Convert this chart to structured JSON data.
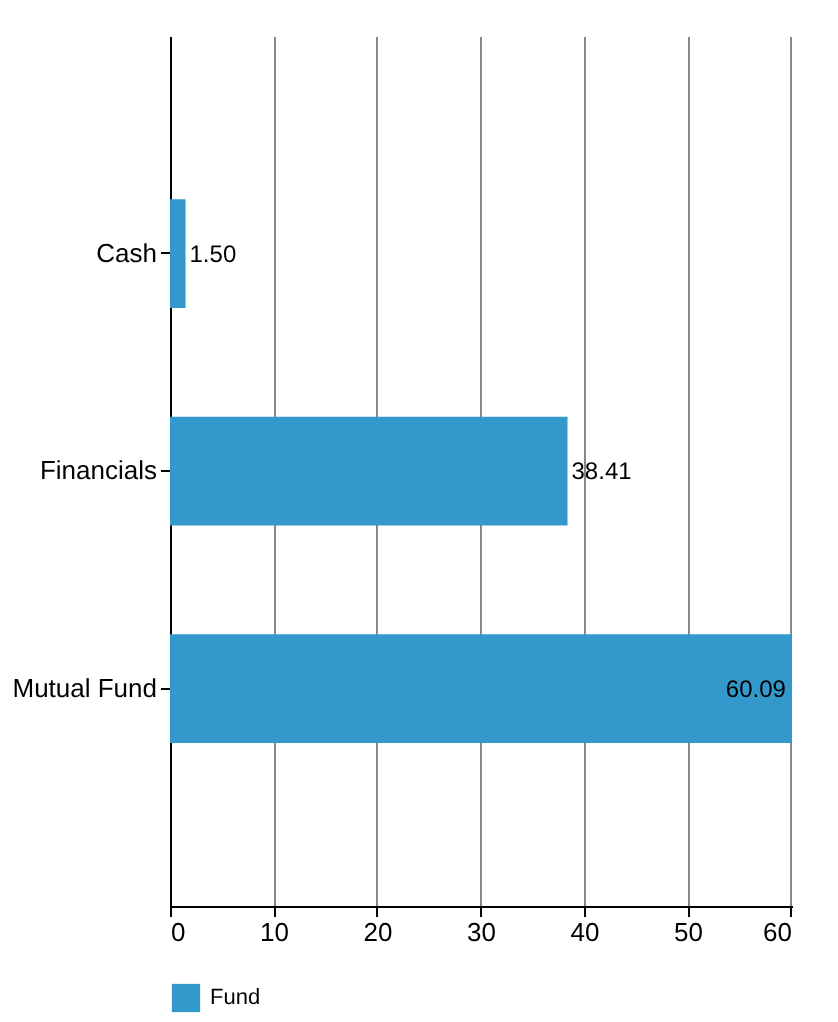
{
  "chart_data": {
    "type": "bar",
    "orientation": "horizontal",
    "categories": [
      "Cash",
      "Financials",
      "Mutual Fund"
    ],
    "series": [
      {
        "name": "Fund",
        "color": "#3399cc",
        "values": [
          1.5,
          38.41,
          60.09
        ],
        "value_labels": [
          "1.50",
          "38.41",
          "60.09"
        ]
      }
    ],
    "xlim": [
      0,
      60.1
    ],
    "xticks": [
      0,
      10,
      20,
      30,
      40,
      50,
      60
    ],
    "grid": "x",
    "legend": "bottom"
  }
}
